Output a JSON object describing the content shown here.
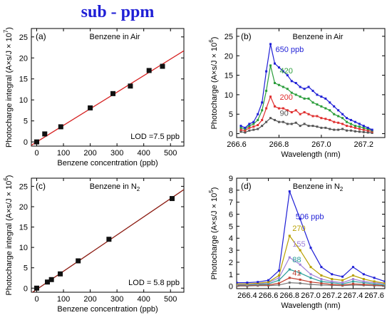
{
  "figure_title": "sub - ppm",
  "colors": {
    "title": "#1f1fd6",
    "fit_a": "#d62020",
    "fit_c": "#8b1a10",
    "marker": "#111111"
  },
  "chart_data": [
    {
      "id": "a",
      "type": "scatter",
      "panel_label": "(a)",
      "title_main": "Benzene in Air",
      "title_sub": "",
      "xlabel": "Benzene concentration (ppb)",
      "ylabel": "Photocharge integral (A×s/J × 10",
      "ylabel_exp": "7",
      "ylabel_end": ")",
      "xlim": [
        -20,
        550
      ],
      "ylim": [
        -1,
        27
      ],
      "xticks": [
        0,
        100,
        200,
        300,
        400,
        500
      ],
      "yticks": [
        0,
        5,
        10,
        15,
        20,
        25
      ],
      "annotation": "LOD =7.5 ppb",
      "fit_line": {
        "x": [
          -20,
          550
        ],
        "y": [
          -0.8,
          21.7
        ],
        "color": "#d62020"
      },
      "points": {
        "x": [
          0,
          30,
          90,
          200,
          285,
          350,
          420,
          470
        ],
        "y": [
          0,
          1.9,
          3.6,
          8.1,
          11.5,
          13.3,
          17,
          18
        ]
      }
    },
    {
      "id": "b",
      "type": "line",
      "panel_label": "(b)",
      "title_main": "Benzene in Air",
      "title_sub": "",
      "xlabel": "Wavelength (nm)",
      "ylabel": "Photocharge (A×s/J × 10",
      "ylabel_exp": "6",
      "ylabel_end": ")",
      "xlim": [
        266.6,
        267.3
      ],
      "ylim": [
        -1,
        27
      ],
      "xticks": [
        266.6,
        266.8,
        267.0,
        267.2
      ],
      "xtick_labels": [
        "266.6",
        "266.8",
        "267.0",
        "267.2"
      ],
      "yticks": [
        0,
        5,
        10,
        15,
        20,
        25
      ],
      "x": [
        266.62,
        266.64,
        266.66,
        266.68,
        266.7,
        266.72,
        266.74,
        266.76,
        266.78,
        266.8,
        266.82,
        266.84,
        266.86,
        266.88,
        266.9,
        266.92,
        266.94,
        266.96,
        266.98,
        267.0,
        267.02,
        267.04,
        267.06,
        267.08,
        267.1,
        267.12,
        267.14,
        267.16,
        267.18,
        267.2,
        267.22,
        267.24
      ],
      "series": [
        {
          "name": "650 ppb",
          "color": "#1f1fd6",
          "label_x": 266.77,
          "label_y": 21,
          "values": [
            2,
            1.5,
            2.5,
            3,
            5,
            8,
            16,
            23,
            18,
            17,
            16,
            15,
            13.5,
            13,
            12,
            11.5,
            12,
            11,
            10,
            9.5,
            9,
            8,
            7,
            6,
            5,
            4,
            3.5,
            3,
            2.5,
            2,
            1.5,
            1
          ]
        },
        {
          "name": "420",
          "color": "#2a9d3a",
          "label_x": 266.79,
          "label_y": 15.5,
          "values": [
            1.5,
            1.2,
            2,
            2.5,
            3.5,
            6,
            11,
            17.5,
            13,
            12.5,
            12,
            11.5,
            10.5,
            10,
            9.5,
            9,
            9,
            8,
            7.5,
            7,
            6.5,
            6,
            5,
            4.5,
            4,
            3,
            2.5,
            2,
            1.8,
            1.5,
            1.2,
            0.8
          ]
        },
        {
          "name": "200",
          "color": "#e03030",
          "label_x": 266.79,
          "label_y": 8.7,
          "values": [
            1,
            0.8,
            1.5,
            1.8,
            2.2,
            3.5,
            6.5,
            9.5,
            7,
            6.5,
            6.5,
            6,
            5.5,
            6,
            5,
            5.5,
            5,
            4.5,
            4.5,
            4,
            3.8,
            3.5,
            3,
            2.8,
            2.5,
            2,
            1.8,
            1.5,
            1.2,
            1,
            0.8,
            0.5
          ]
        },
        {
          "name": "90",
          "color": "#555555",
          "label_x": 266.79,
          "label_y": 4.6,
          "values": [
            0.5,
            0.3,
            0.8,
            1,
            1.2,
            2,
            3,
            4,
            3.5,
            3,
            3,
            2.5,
            2.5,
            2.8,
            2,
            2.5,
            2,
            2,
            1.8,
            1.5,
            1.5,
            1.2,
            1,
            1,
            1.2,
            0.8,
            0.8,
            0.6,
            0.5,
            0.4,
            0.3,
            0.2
          ]
        }
      ]
    },
    {
      "id": "c",
      "type": "scatter",
      "panel_label": "(c)",
      "title_main": "Benzene in N",
      "title_sub": "2",
      "xlabel": "Benzene concentration (ppb)",
      "ylabel": "Photocharge integral (A×s/J × 10",
      "ylabel_exp": "6",
      "ylabel_end": ")",
      "xlim": [
        -20,
        550
      ],
      "ylim": [
        -1,
        27
      ],
      "xticks": [
        0,
        100,
        200,
        300,
        400,
        500
      ],
      "yticks": [
        0,
        5,
        10,
        15,
        20,
        25
      ],
      "annotation": "LOD = 5.8 ppb",
      "fit_line": {
        "x": [
          -20,
          550
        ],
        "y": [
          -1.2,
          24.2
        ],
        "color": "#8b1a10"
      },
      "points": {
        "x": [
          0,
          40,
          55,
          88,
          155,
          270,
          506
        ],
        "y": [
          0,
          1.5,
          2.1,
          3.5,
          6.7,
          12,
          22
        ]
      }
    },
    {
      "id": "d",
      "type": "line",
      "panel_label": "(d)",
      "title_main": "Benzene in N",
      "title_sub": "2",
      "xlabel": "Wavelength (nm)",
      "ylabel": "Photocharge (A×s/J × 10",
      "ylabel_exp": "5",
      "ylabel_end": ")",
      "xlim": [
        266.3,
        267.7
      ],
      "ylim": [
        -0.2,
        9
      ],
      "xticks": [
        266.4,
        266.6,
        266.8,
        267.0,
        267.2,
        267.4,
        267.6
      ],
      "xtick_labels": [
        "266.4",
        "266.6",
        "266.8",
        "267.0",
        "267.2",
        "267.4",
        "267.6"
      ],
      "yticks": [
        0,
        1,
        2,
        3,
        4,
        5,
        6,
        7,
        8,
        9
      ],
      "x": [
        266.3,
        266.4,
        266.5,
        266.6,
        266.7,
        266.8,
        266.9,
        267.0,
        267.1,
        267.2,
        267.3,
        267.4,
        267.5,
        267.6,
        267.7
      ],
      "series": [
        {
          "name": "506 ppb",
          "color": "#1f1fd6",
          "label_x": 266.83,
          "label_y": 5.6,
          "values": [
            0.3,
            0.3,
            0.35,
            0.5,
            1.3,
            7.9,
            5.6,
            3.2,
            1.6,
            1,
            0.8,
            1.6,
            1,
            0.7,
            0.4
          ]
        },
        {
          "name": "270",
          "color": "#b8a000",
          "label_x": 266.8,
          "label_y": 4.6,
          "values": [
            0.2,
            0.2,
            0.25,
            0.35,
            0.9,
            4.2,
            3,
            1.6,
            0.9,
            0.6,
            0.5,
            0.9,
            0.6,
            0.4,
            0.25
          ]
        },
        {
          "name": "155",
          "color": "#a080d8",
          "label_x": 266.8,
          "label_y": 3.3,
          "values": [
            0.15,
            0.15,
            0.2,
            0.3,
            0.7,
            2.4,
            1.8,
            1,
            0.6,
            0.4,
            0.3,
            0.6,
            0.4,
            0.3,
            0.2
          ]
        },
        {
          "name": "88",
          "color": "#2a9d9a",
          "label_x": 266.8,
          "label_y": 2,
          "values": [
            0.1,
            0.1,
            0.15,
            0.2,
            0.5,
            1.4,
            1.1,
            0.7,
            0.4,
            0.3,
            0.2,
            0.4,
            0.3,
            0.2,
            0.1
          ]
        },
        {
          "name": "41",
          "color": "#c04030",
          "label_x": 266.8,
          "label_y": 0.9,
          "values": [
            0.05,
            0.05,
            0.1,
            0.1,
            0.25,
            0.7,
            0.55,
            0.35,
            0.25,
            0.15,
            0.1,
            0.2,
            0.15,
            0.1,
            0.05
          ]
        },
        {
          "name": "",
          "color": "#777777",
          "values": [
            0.02,
            0.02,
            0.05,
            0.05,
            0.1,
            0.3,
            0.25,
            0.15,
            0.1,
            0.08,
            0.05,
            0.1,
            0.08,
            0.05,
            0.02
          ]
        }
      ]
    }
  ]
}
